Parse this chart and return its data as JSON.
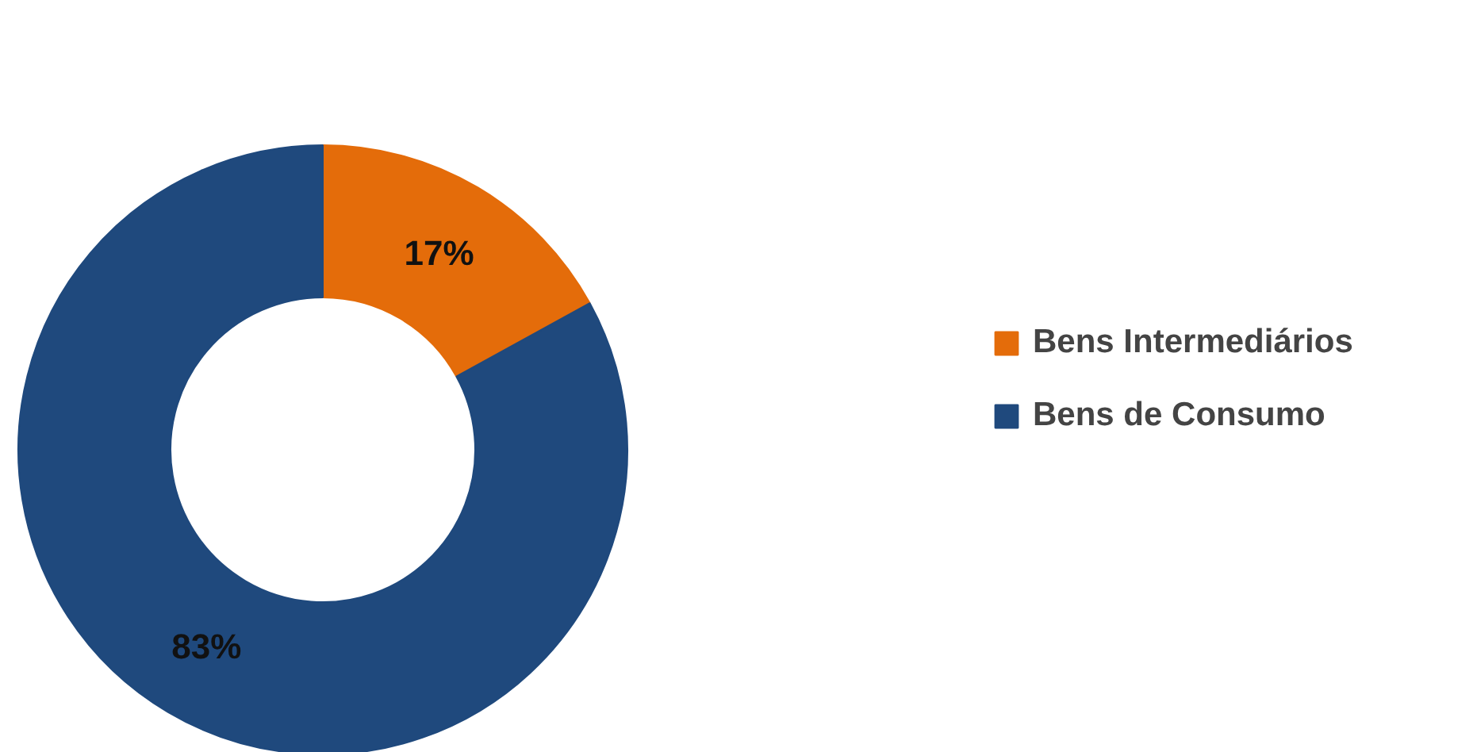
{
  "chart_data": {
    "type": "donut",
    "categories": [
      "Bens Intermediários",
      "Bens de Consumo"
    ],
    "values": [
      17,
      83
    ],
    "value_labels": [
      "17%",
      "83%"
    ],
    "colors": [
      "#e46c0a",
      "#1f497d"
    ],
    "legend": "right"
  }
}
